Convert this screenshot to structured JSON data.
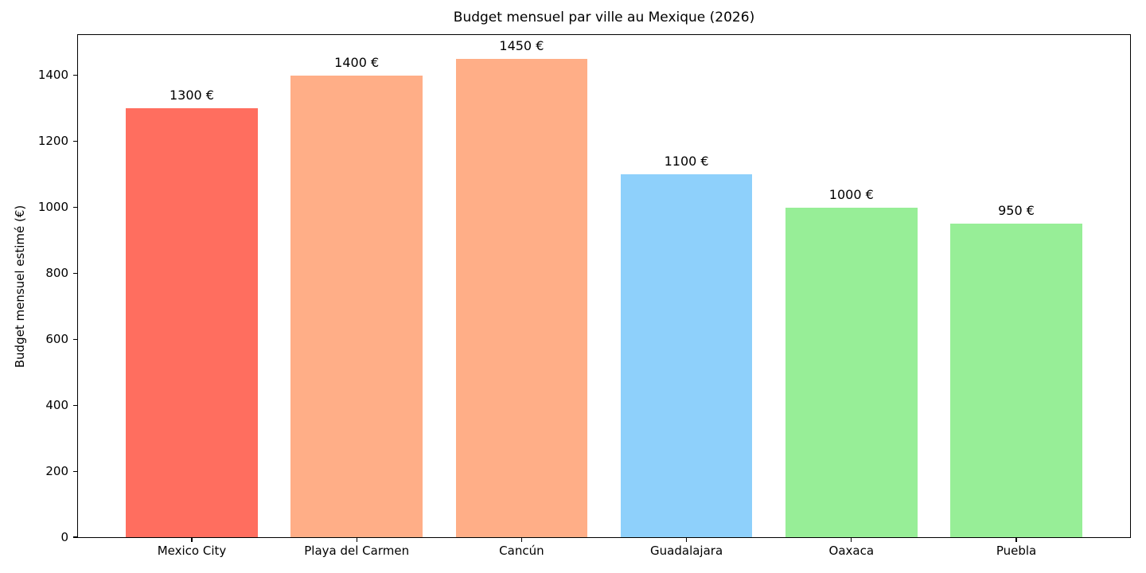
{
  "chart_data": {
    "type": "bar",
    "title": "Budget mensuel par ville au Mexique (2026)",
    "xlabel": "",
    "ylabel": "Budget mensuel estimé (€)",
    "categories": [
      "Mexico City",
      "Playa del Carmen",
      "Cancún",
      "Guadalajara",
      "Oaxaca",
      "Puebla"
    ],
    "values": [
      1300,
      1400,
      1450,
      1100,
      1000,
      950
    ],
    "bar_labels": [
      "1300 €",
      "1400 €",
      "1450 €",
      "1100 €",
      "1000 €",
      "950 €"
    ],
    "bar_colors": [
      "#ff6e5f",
      "#ffae87",
      "#ffae87",
      "#8ed0fb",
      "#97ee97",
      "#97ee97"
    ],
    "ylim": [
      0,
      1522.5
    ],
    "yticks": [
      0,
      200,
      400,
      600,
      800,
      1000,
      1200,
      1400
    ],
    "xlim": [
      -0.69,
      5.69
    ],
    "bar_width": 0.8,
    "grid": false,
    "legend": null,
    "background_color": "#ffffff",
    "axis_color": "#000000"
  }
}
